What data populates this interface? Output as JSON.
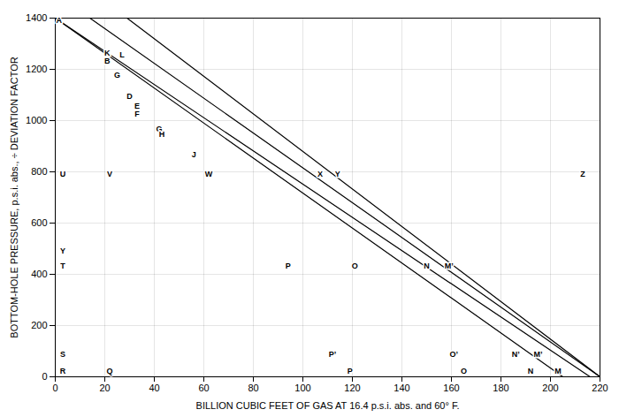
{
  "chart_data": {
    "type": "line",
    "xlabel": "BILLION CUBIC FEET OF GAS AT 16.4 p.s.i. abs. and 60° F.",
    "ylabel": "BOTTOM-HOLE PRESSURE, p.s.i. abs., ÷ DEVIATION FACTOR",
    "xlim": [
      0,
      220
    ],
    "ylim": [
      0,
      1400
    ],
    "xticks": [
      0,
      20,
      40,
      60,
      80,
      100,
      120,
      140,
      160,
      180,
      200,
      220
    ],
    "yticks": [
      0,
      200,
      400,
      600,
      800,
      1000,
      1200,
      1400
    ],
    "grid": true,
    "series": [
      {
        "color": "black",
        "x": [
          0,
          205
        ],
        "values": [
          1400,
          0
        ]
      },
      {
        "color": "black",
        "x": [
          0,
          216
        ],
        "values": [
          1400,
          0
        ]
      },
      {
        "color": "black",
        "x": [
          14,
          220
        ],
        "values": [
          1400,
          0
        ]
      },
      {
        "color": "black",
        "x": [
          29,
          220
        ],
        "values": [
          1400,
          0
        ]
      }
    ],
    "annotations": [
      {
        "text": "A",
        "x": 1.5,
        "y": 1390
      },
      {
        "text": "K",
        "x": 21,
        "y": 1263
      },
      {
        "text": "B",
        "x": 21,
        "y": 1233
      },
      {
        "text": "L",
        "x": 27,
        "y": 1255
      },
      {
        "text": "G",
        "x": 25,
        "y": 1178
      },
      {
        "text": "D",
        "x": 30,
        "y": 1093
      },
      {
        "text": "E",
        "x": 33,
        "y": 1058
      },
      {
        "text": "F",
        "x": 33,
        "y": 1025
      },
      {
        "text": "G",
        "x": 42,
        "y": 968
      },
      {
        "text": "H",
        "x": 43,
        "y": 946
      },
      {
        "text": "J",
        "x": 56,
        "y": 868
      },
      {
        "text": "U",
        "x": 3,
        "y": 792
      },
      {
        "text": "V",
        "x": 22,
        "y": 792
      },
      {
        "text": "W",
        "x": 62,
        "y": 792
      },
      {
        "text": "X",
        "x": 107,
        "y": 792
      },
      {
        "text": "Y",
        "x": 114,
        "y": 792
      },
      {
        "text": "Z",
        "x": 213,
        "y": 792
      },
      {
        "text": "T",
        "x": 3,
        "y": 432
      },
      {
        "text": "P",
        "x": 94,
        "y": 432
      },
      {
        "text": "O",
        "x": 121,
        "y": 432
      },
      {
        "text": "N",
        "x": 150,
        "y": 432
      },
      {
        "text": "M’",
        "x": 159,
        "y": 432
      },
      {
        "text": "Y",
        "x": 3,
        "y": 492
      },
      {
        "text": "S",
        "x": 3,
        "y": 88
      },
      {
        "text": "R",
        "x": 3,
        "y": 22
      },
      {
        "text": "Q",
        "x": 22,
        "y": 22
      },
      {
        "text": "P’",
        "x": 112,
        "y": 88
      },
      {
        "text": "P",
        "x": 119,
        "y": 22
      },
      {
        "text": "O’",
        "x": 161,
        "y": 88
      },
      {
        "text": "O",
        "x": 165,
        "y": 22
      },
      {
        "text": "N’",
        "x": 186,
        "y": 88
      },
      {
        "text": "N",
        "x": 192,
        "y": 22
      },
      {
        "text": "M’",
        "x": 195,
        "y": 88
      },
      {
        "text": "M",
        "x": 203,
        "y": 22
      }
    ]
  }
}
